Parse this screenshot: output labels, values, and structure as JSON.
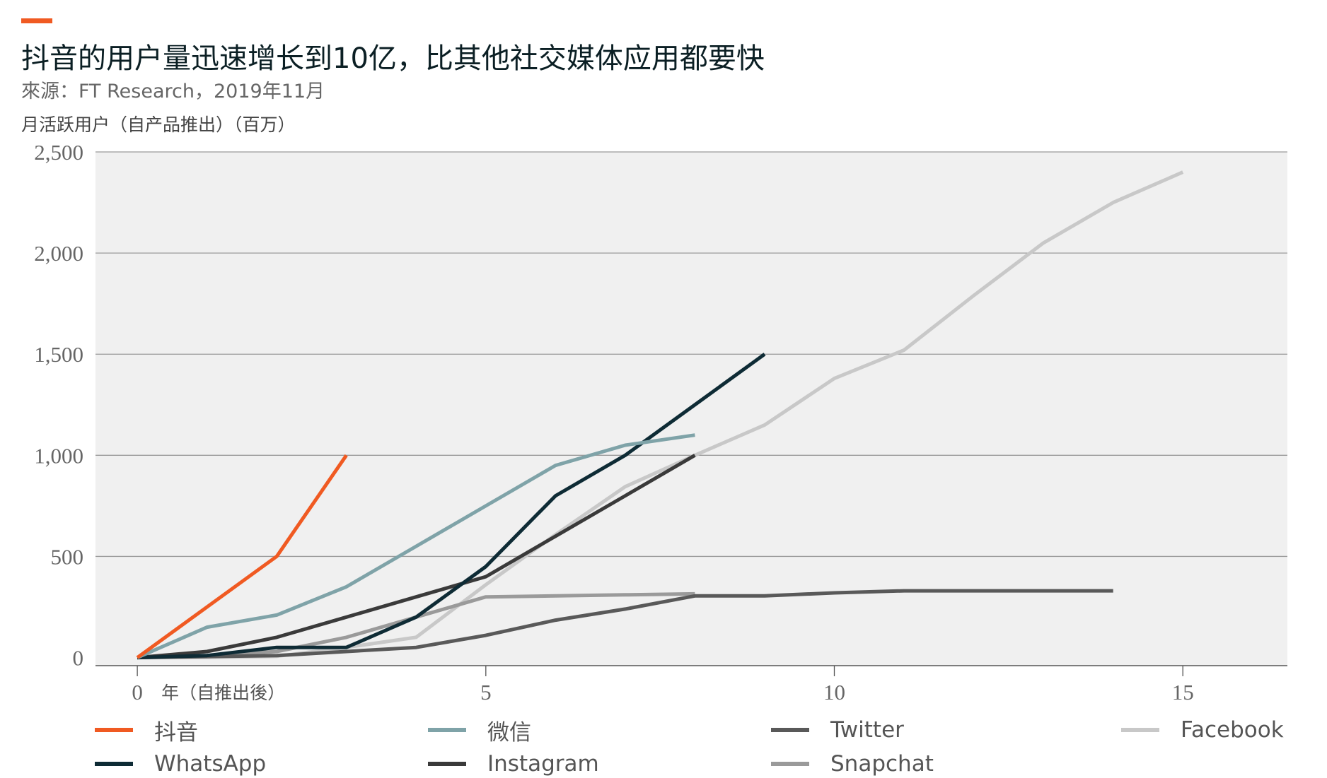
{
  "header": {
    "title": "抖音的用户量迅速增长到10亿，比其他社交媒体应用都要快",
    "source": "來源：FT Research，2019年11月",
    "ylabel": "月活跃用户（自产品推出）（百万）",
    "accent_color": "#f05a22"
  },
  "chart_data": {
    "type": "line",
    "xlabel": "年（自推出後）",
    "ylabel": "月活跃用户（自产品推出）（百万）",
    "xlim": [
      -0.6,
      16.5
    ],
    "ylim": [
      -40,
      2500
    ],
    "x_ticks": [
      0,
      5,
      10,
      15
    ],
    "x_tick_labels": [
      "0",
      "5",
      "10",
      "15"
    ],
    "y_ticks": [
      0,
      500,
      1000,
      1500,
      2000,
      2500
    ],
    "y_tick_labels": [
      "0",
      "500",
      "1,000",
      "1,500",
      "2,000",
      "2,500"
    ],
    "grid": true,
    "legend_position": "bottom",
    "series": [
      {
        "name": "Facebook",
        "color": "#c8c8c8",
        "points": [
          [
            0,
            0
          ],
          [
            1,
            1
          ],
          [
            2,
            6
          ],
          [
            3,
            50
          ],
          [
            4,
            100
          ],
          [
            5,
            360
          ],
          [
            6,
            608
          ],
          [
            7,
            845
          ],
          [
            8,
            1000
          ],
          [
            9,
            1150
          ],
          [
            10,
            1380
          ],
          [
            11,
            1520
          ],
          [
            12,
            1790
          ],
          [
            13,
            2050
          ],
          [
            14,
            2250
          ],
          [
            15,
            2400
          ]
        ]
      },
      {
        "name": "Snapchat",
        "color": "#9a9a9a",
        "points": [
          [
            0,
            0
          ],
          [
            1,
            10
          ],
          [
            2,
            30
          ],
          [
            3,
            100
          ],
          [
            4,
            200
          ],
          [
            5,
            300
          ],
          [
            6,
            305
          ],
          [
            7,
            310
          ],
          [
            8,
            315
          ]
        ]
      },
      {
        "name": "Twitter",
        "color": "#595959",
        "points": [
          [
            0,
            0
          ],
          [
            1,
            5
          ],
          [
            2,
            10
          ],
          [
            3,
            30
          ],
          [
            4,
            50
          ],
          [
            5,
            110
          ],
          [
            6,
            185
          ],
          [
            7,
            240
          ],
          [
            8,
            305
          ],
          [
            9,
            305
          ],
          [
            10,
            320
          ],
          [
            11,
            330
          ],
          [
            12,
            330
          ],
          [
            13,
            330
          ],
          [
            14,
            330
          ]
        ]
      },
      {
        "name": "Instagram",
        "color": "#3a3a3a",
        "points": [
          [
            0,
            0
          ],
          [
            1,
            30
          ],
          [
            2,
            100
          ],
          [
            3,
            200
          ],
          [
            4,
            300
          ],
          [
            5,
            400
          ],
          [
            6,
            600
          ],
          [
            7,
            800
          ],
          [
            8,
            1000
          ]
        ]
      },
      {
        "name": "WhatsApp",
        "color": "#0e2b35",
        "points": [
          [
            0,
            0
          ],
          [
            1,
            10
          ],
          [
            2,
            50
          ],
          [
            3,
            50
          ],
          [
            4,
            200
          ],
          [
            5,
            450
          ],
          [
            6,
            800
          ],
          [
            7,
            1000
          ],
          [
            8,
            1250
          ],
          [
            9,
            1500
          ]
        ]
      },
      {
        "name": "微信",
        "color": "#7fa3a8",
        "points": [
          [
            0,
            0
          ],
          [
            1,
            150
          ],
          [
            2,
            210
          ],
          [
            3,
            350
          ],
          [
            4,
            550
          ],
          [
            5,
            750
          ],
          [
            6,
            950
          ],
          [
            7,
            1050
          ],
          [
            8,
            1100
          ]
        ]
      },
      {
        "name": "抖音",
        "color": "#f05a22",
        "points": [
          [
            0,
            0
          ],
          [
            2,
            500
          ],
          [
            3,
            1000
          ]
        ]
      }
    ]
  },
  "legend": [
    {
      "label": "抖音",
      "color": "#f05a22"
    },
    {
      "label": "微信",
      "color": "#7fa3a8"
    },
    {
      "label": "Twitter",
      "color": "#595959"
    },
    {
      "label": "Facebook",
      "color": "#c8c8c8"
    },
    {
      "label": "WhatsApp",
      "color": "#0e2b35"
    },
    {
      "label": "Instagram",
      "color": "#3a3a3a"
    },
    {
      "label": "Snapchat",
      "color": "#9a9a9a"
    }
  ]
}
